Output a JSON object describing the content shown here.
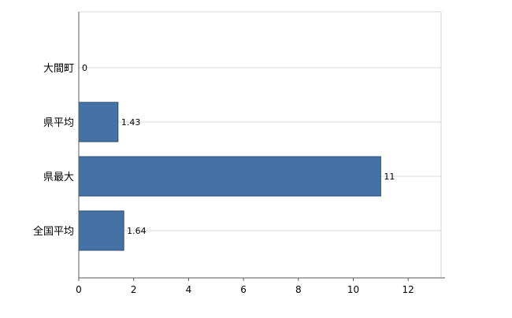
{
  "chart_data": {
    "type": "bar",
    "orientation": "horizontal",
    "title": "",
    "categories": [
      "大間町",
      "県平均",
      "県最大",
      "全国平均"
    ],
    "values": [
      0,
      1.43,
      11,
      1.64
    ],
    "value_labels": [
      "0",
      "1.43",
      "11",
      "1.64"
    ],
    "x_ticks": [
      0,
      2,
      4,
      6,
      8,
      10,
      12
    ],
    "x_tick_labels": [
      "0",
      "2",
      "4",
      "6",
      "8",
      "10",
      "12"
    ],
    "xlim": [
      0,
      13.2
    ],
    "grid": true,
    "legend_position": "none",
    "colors": {
      "bar_fill": "#4472a4",
      "bar_border": "#2c4d76",
      "grid_line": "#d9d9d9",
      "plot_border": "#d9d9d9",
      "axis_line": "#595959",
      "tick_text": "#000000",
      "value_text": "#000000",
      "background": "#ffffff"
    }
  }
}
